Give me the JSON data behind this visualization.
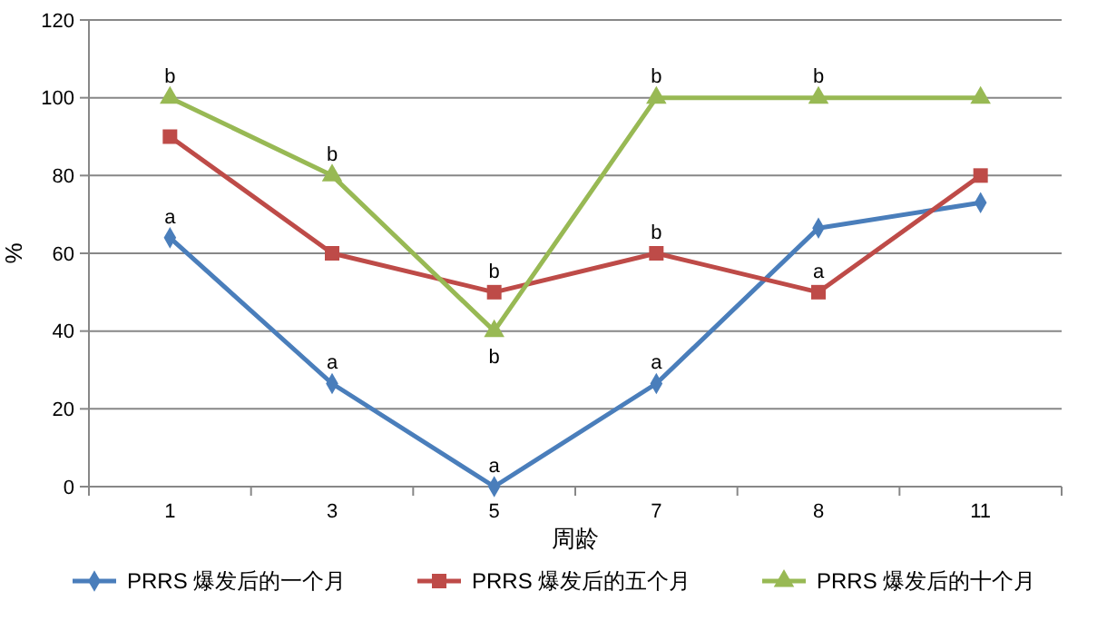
{
  "chart_data": {
    "type": "line",
    "xlabel": "周龄",
    "ylabel": "%",
    "categories": [
      "1",
      "3",
      "5",
      "7",
      "8",
      "11"
    ],
    "series": [
      {
        "name": "PRRS 爆发后的一个月",
        "color": "#4a7ebb",
        "marker": "diamond",
        "values": [
          64,
          26.5,
          0,
          26.5,
          66.5,
          73
        ]
      },
      {
        "name": "PRRS 爆发后的五个月",
        "color": "#be4b48",
        "marker": "square",
        "values": [
          90,
          60,
          50,
          60,
          50,
          80
        ]
      },
      {
        "name": "PRRS 爆发后的十个月",
        "color": "#98b954",
        "marker": "triangle",
        "values": [
          100,
          80,
          40,
          100,
          100,
          100
        ]
      }
    ],
    "ylim": [
      0,
      120
    ],
    "yticks": [
      0,
      20,
      40,
      60,
      80,
      100,
      120
    ],
    "grid": "y",
    "legend": "bottom",
    "annotations": [
      {
        "text": "b",
        "x": "1",
        "y": 100
      },
      {
        "text": "a",
        "x": "1",
        "y": 64
      },
      {
        "text": "b",
        "x": "3",
        "y": 80
      },
      {
        "text": "a",
        "x": "3",
        "y": 26.5
      },
      {
        "text": "b",
        "x": "5",
        "y": 50
      },
      {
        "text": "a",
        "x": "5",
        "y": 0
      },
      {
        "text": "b",
        "x": "5",
        "y": 40
      },
      {
        "text": "b",
        "x": "7",
        "y": 100
      },
      {
        "text": "b",
        "x": "7",
        "y": 60
      },
      {
        "text": "a",
        "x": "7",
        "y": 26.5
      },
      {
        "text": "b",
        "x": "8",
        "y": 100
      },
      {
        "text": "a",
        "x": "8",
        "y": 50
      }
    ]
  }
}
